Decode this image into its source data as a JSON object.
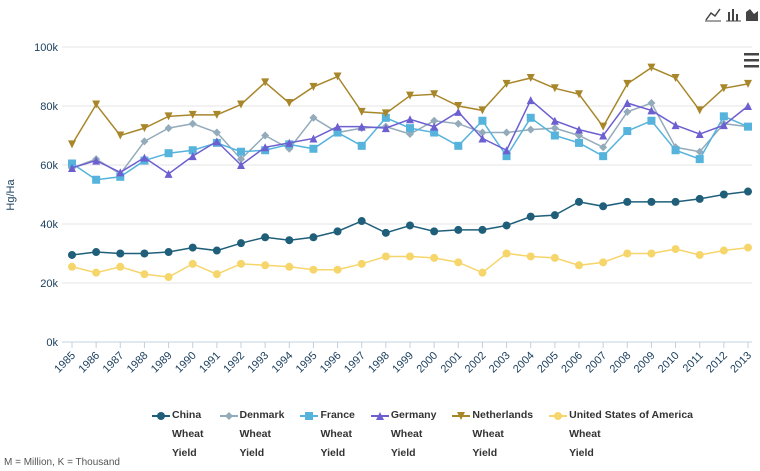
{
  "chart_data": {
    "type": "line",
    "y_label": "Hg/Ha",
    "footnote": "M = Million, K = Thousand",
    "x": [
      "1985",
      "1986",
      "1987",
      "1988",
      "1989",
      "1990",
      "1991",
      "1992",
      "1993",
      "1994",
      "1995",
      "1996",
      "1997",
      "1998",
      "1999",
      "2000",
      "2001",
      "2002",
      "2003",
      "2004",
      "2005",
      "2006",
      "2007",
      "2008",
      "2009",
      "2010",
      "2011",
      "2012",
      "2013"
    ],
    "ylim": [
      0,
      100000
    ],
    "yticks": [
      {
        "value": 0,
        "label": "0k"
      },
      {
        "value": 20000,
        "label": "20k"
      },
      {
        "value": 40000,
        "label": "40k"
      },
      {
        "value": 60000,
        "label": "60k"
      },
      {
        "value": 80000,
        "label": "80k"
      },
      {
        "value": 100000,
        "label": "100k"
      }
    ],
    "grid": true,
    "series": [
      {
        "name": "China\nWheat\nYield",
        "color": "#1f5f7a",
        "marker": "circle",
        "values": [
          29500,
          30500,
          30000,
          30000,
          30500,
          32000,
          31000,
          33500,
          35500,
          34500,
          35500,
          37500,
          41000,
          37000,
          39500,
          37500,
          38000,
          38000,
          39500,
          42500,
          43000,
          47500,
          46000,
          47500,
          47500,
          47500,
          48500,
          50000,
          51000
        ]
      },
      {
        "name": "Denmark\nWheat\nYield",
        "color": "#93abba",
        "marker": "diamond",
        "values": [
          59000,
          62000,
          57000,
          68000,
          72500,
          74000,
          71000,
          62000,
          70000,
          65500,
          76000,
          71000,
          72500,
          73000,
          70500,
          75000,
          74000,
          71000,
          71000,
          72000,
          72500,
          70000,
          66000,
          78000,
          81000,
          66000,
          64500,
          74000,
          73000
        ]
      },
      {
        "name": "France\nWheat\nYield",
        "color": "#55b3dc",
        "marker": "square",
        "values": [
          60500,
          55000,
          56000,
          61500,
          64000,
          65000,
          67500,
          64500,
          65000,
          67000,
          65500,
          71000,
          66500,
          76000,
          72500,
          71000,
          66500,
          75000,
          63000,
          76000,
          70000,
          67500,
          63000,
          71500,
          75000,
          65000,
          62000,
          76500,
          73000
        ]
      },
      {
        "name": "Germany\nWheat\nYield",
        "color": "#6c5fd0",
        "marker": "triangle",
        "values": [
          59000,
          61500,
          57500,
          62500,
          57000,
          63000,
          68000,
          60000,
          66000,
          67500,
          69000,
          73000,
          73000,
          72500,
          75500,
          73000,
          78000,
          69000,
          65000,
          82000,
          75000,
          72000,
          70000,
          81000,
          78500,
          73500,
          70500,
          73500,
          80000
        ]
      },
      {
        "name": "Netherlands\nWheat\nYield",
        "color": "#a8862a",
        "marker": "triangle-down",
        "values": [
          67000,
          80500,
          70000,
          72500,
          76500,
          77000,
          77000,
          80500,
          88000,
          81000,
          86500,
          90000,
          78000,
          77500,
          83500,
          84000,
          80000,
          78500,
          87500,
          89500,
          86000,
          84000,
          73000,
          87500,
          93000,
          89500,
          78500,
          86000,
          87500
        ]
      },
      {
        "name": "United States of America\nWheat\nYield",
        "color": "#f6d56a",
        "marker": "circle",
        "values": [
          25500,
          23500,
          25500,
          23000,
          22000,
          26500,
          23000,
          26500,
          26000,
          25500,
          24500,
          24500,
          26500,
          29000,
          29000,
          28500,
          27000,
          23500,
          30000,
          29000,
          28500,
          26000,
          27000,
          30000,
          30000,
          31500,
          29500,
          31000,
          32000
        ]
      }
    ]
  }
}
